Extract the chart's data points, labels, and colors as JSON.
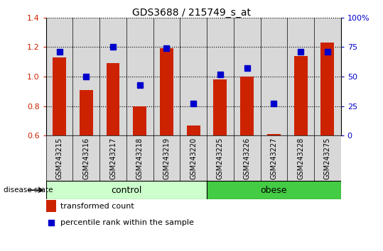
{
  "title": "GDS3688 / 215749_s_at",
  "samples": [
    "GSM243215",
    "GSM243216",
    "GSM243217",
    "GSM243218",
    "GSM243219",
    "GSM243220",
    "GSM243225",
    "GSM243226",
    "GSM243227",
    "GSM243228",
    "GSM243275"
  ],
  "transformed_count": [
    1.13,
    0.91,
    1.09,
    0.8,
    1.19,
    0.67,
    0.98,
    1.0,
    0.61,
    1.14,
    1.23
  ],
  "percentile_rank": [
    71,
    50,
    75,
    43,
    74,
    27,
    52,
    57,
    27,
    71,
    71
  ],
  "ylim_left": [
    0.6,
    1.4
  ],
  "ylim_right": [
    0,
    100
  ],
  "yticks_left": [
    0.6,
    0.8,
    1.0,
    1.2,
    1.4
  ],
  "yticks_right": [
    0,
    25,
    50,
    75,
    100
  ],
  "bar_color": "#cc2200",
  "marker_color": "#0000cc",
  "bar_width": 0.5,
  "marker_size": 6,
  "groups": [
    {
      "label": "control",
      "start": 0,
      "end": 5,
      "color": "#ccffcc"
    },
    {
      "label": "obese",
      "start": 6,
      "end": 10,
      "color": "#44cc44"
    }
  ],
  "group_label_prefix": "disease state",
  "legend_bar_label": "transformed count",
  "legend_marker_label": "percentile rank within the sample",
  "background_color": "#ffffff",
  "plot_bg_color": "#d8d8d8",
  "grid_color": "#000000",
  "ytick_left_color": "#cc2200",
  "ytick_right_color": "#0000cc",
  "title_fontsize": 10,
  "tick_fontsize": 8,
  "label_fontsize": 7,
  "legend_fontsize": 8,
  "group_fontsize": 9
}
